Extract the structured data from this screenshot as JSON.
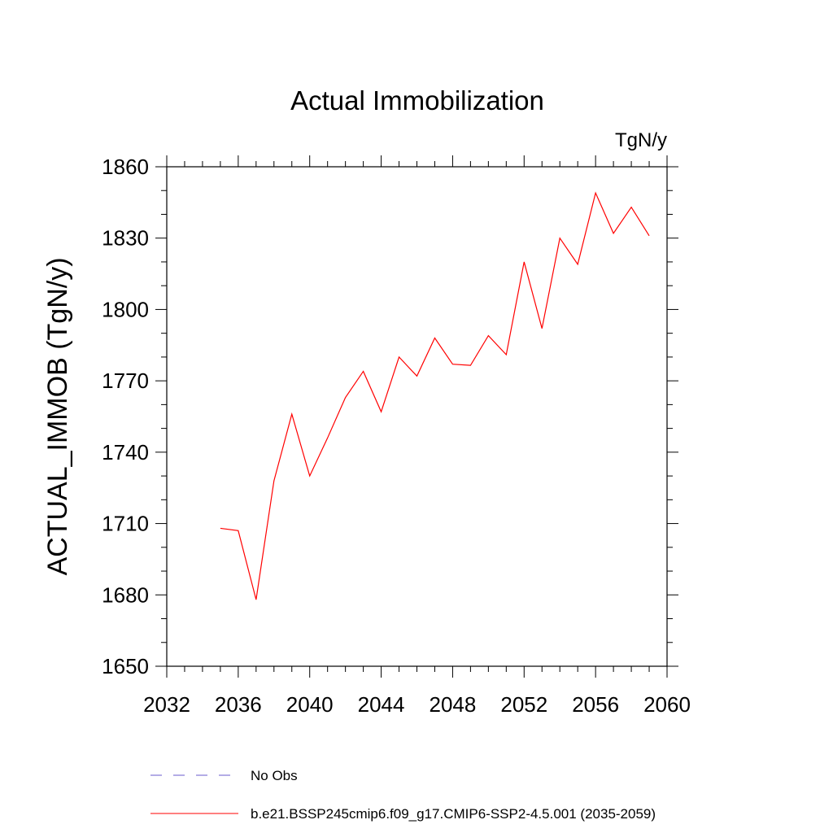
{
  "chart_data": {
    "type": "line",
    "title": "Actual Immobilization",
    "units_label": "TgN/y",
    "ylabel": "ACTUAL_IMMOB  (TgN/y)",
    "xlabel": "",
    "xlim": [
      2032,
      2060
    ],
    "ylim": [
      1650,
      1860
    ],
    "x_ticks": [
      2032,
      2036,
      2040,
      2044,
      2048,
      2052,
      2056,
      2060
    ],
    "y_ticks": [
      1650,
      1680,
      1710,
      1740,
      1770,
      1800,
      1830,
      1860
    ],
    "grid": false,
    "series": [
      {
        "name": "b.e21.BSSP245cmip6.f09_g17.CMIP6-SSP2-4.5.001 (2035-2059)",
        "color": "#ff0000",
        "x": [
          2035,
          2036,
          2037,
          2038,
          2039,
          2040,
          2041,
          2042,
          2043,
          2044,
          2045,
          2046,
          2047,
          2048,
          2049,
          2050,
          2051,
          2052,
          2053,
          2054,
          2055,
          2056,
          2057,
          2058,
          2059
        ],
        "y": [
          1708,
          1707,
          1678,
          1728,
          1756,
          1730,
          1746,
          1763,
          1774,
          1757,
          1780,
          1772,
          1788,
          1777,
          1776.5,
          1789,
          1781,
          1820,
          1792,
          1830,
          1819,
          1849,
          1832,
          1843,
          1831
        ]
      }
    ],
    "legend": {
      "placement": "bottom",
      "entries": [
        {
          "label": "No Obs",
          "color": "#6a5acd",
          "style": "dashed"
        },
        {
          "label": "b.e21.BSSP245cmip6.f09_g17.CMIP6-SSP2-4.5.001 (2035-2059)",
          "color": "#ff0000",
          "style": "solid"
        }
      ]
    }
  }
}
